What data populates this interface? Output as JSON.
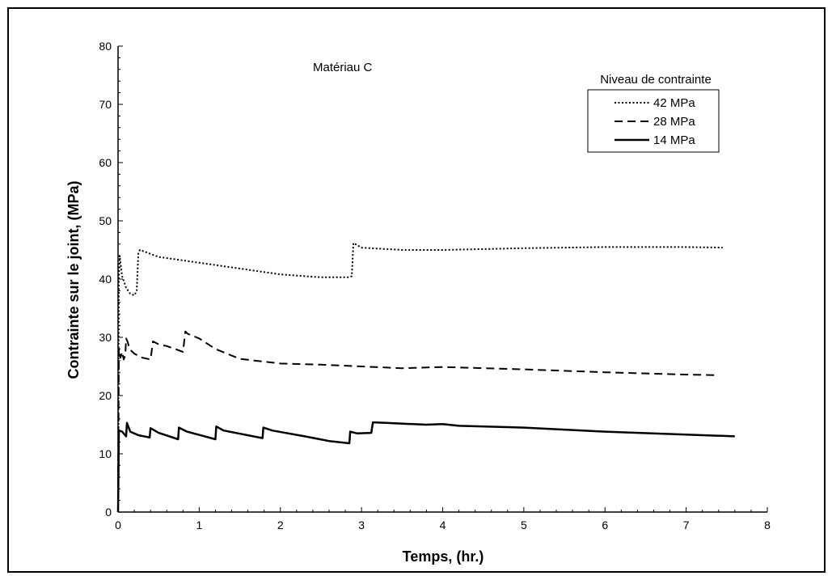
{
  "chart_data": {
    "type": "line",
    "title": "",
    "annotation": "Matériau C",
    "xlabel": "Temps, (hr.)",
    "ylabel": "Contrainte sur le joint, (MPa)",
    "xlim": [
      0,
      8
    ],
    "ylim": [
      0,
      80
    ],
    "xticks": [
      0,
      1,
      2,
      3,
      4,
      5,
      6,
      7,
      8
    ],
    "yticks": [
      0,
      10,
      20,
      30,
      40,
      50,
      60,
      70,
      80
    ],
    "grid": false,
    "legend_position": "top-right",
    "legend_title": "Niveau de contrainte",
    "series": [
      {
        "name": "42 MPa",
        "style": "dotted",
        "color": "#000000",
        "points": [
          [
            0,
            0
          ],
          [
            0.01,
            40
          ],
          [
            0.02,
            44
          ],
          [
            0.05,
            40.5
          ],
          [
            0.1,
            38.5
          ],
          [
            0.15,
            37.5
          ],
          [
            0.2,
            37.2
          ],
          [
            0.23,
            38
          ],
          [
            0.25,
            44.5
          ],
          [
            0.27,
            45
          ],
          [
            0.5,
            43.8
          ],
          [
            1.0,
            42.8
          ],
          [
            1.5,
            41.8
          ],
          [
            2.0,
            40.8
          ],
          [
            2.5,
            40.3
          ],
          [
            2.85,
            40.3
          ],
          [
            2.88,
            40.5
          ],
          [
            2.9,
            46.2
          ],
          [
            3.0,
            45.4
          ],
          [
            3.5,
            45
          ],
          [
            4.0,
            45
          ],
          [
            5.0,
            45.3
          ],
          [
            6.0,
            45.5
          ],
          [
            7.0,
            45.5
          ],
          [
            7.45,
            45.4
          ]
        ]
      },
      {
        "name": "28 MPa",
        "style": "dashed",
        "color": "#000000",
        "points": [
          [
            0,
            0
          ],
          [
            0.01,
            28
          ],
          [
            0.03,
            26.5
          ],
          [
            0.05,
            27.5
          ],
          [
            0.07,
            26.2
          ],
          [
            0.09,
            27
          ],
          [
            0.1,
            29.8
          ],
          [
            0.12,
            29.2
          ],
          [
            0.14,
            28
          ],
          [
            0.2,
            27.2
          ],
          [
            0.3,
            26.5
          ],
          [
            0.4,
            26.2
          ],
          [
            0.43,
            29.3
          ],
          [
            0.5,
            28.8
          ],
          [
            0.6,
            28.5
          ],
          [
            0.7,
            28
          ],
          [
            0.8,
            27.5
          ],
          [
            0.83,
            31
          ],
          [
            0.86,
            30.6
          ],
          [
            1.0,
            29.8
          ],
          [
            1.2,
            28
          ],
          [
            1.5,
            26.3
          ],
          [
            2.0,
            25.5
          ],
          [
            2.5,
            25.3
          ],
          [
            3.0,
            25
          ],
          [
            3.5,
            24.7
          ],
          [
            4.0,
            24.9
          ],
          [
            5.0,
            24.5
          ],
          [
            6.0,
            24
          ],
          [
            7.0,
            23.6
          ],
          [
            7.4,
            23.5
          ]
        ]
      },
      {
        "name": "14 MPa",
        "style": "solid",
        "color": "#000000",
        "points": [
          [
            0,
            0
          ],
          [
            0.01,
            14
          ],
          [
            0.05,
            13.8
          ],
          [
            0.1,
            13
          ],
          [
            0.11,
            15.3
          ],
          [
            0.15,
            13.8
          ],
          [
            0.25,
            13.2
          ],
          [
            0.39,
            12.8
          ],
          [
            0.4,
            14.4
          ],
          [
            0.5,
            13.6
          ],
          [
            0.74,
            12.5
          ],
          [
            0.75,
            14.5
          ],
          [
            0.85,
            13.8
          ],
          [
            1.2,
            12.5
          ],
          [
            1.21,
            14.7
          ],
          [
            1.3,
            14
          ],
          [
            1.78,
            12.7
          ],
          [
            1.79,
            14.5
          ],
          [
            1.9,
            14
          ],
          [
            2.3,
            13
          ],
          [
            2.6,
            12.2
          ],
          [
            2.85,
            11.8
          ],
          [
            2.86,
            13.8
          ],
          [
            2.95,
            13.5
          ],
          [
            3.12,
            13.6
          ],
          [
            3.14,
            15.4
          ],
          [
            3.3,
            15.3
          ],
          [
            3.8,
            15
          ],
          [
            4.0,
            15.1
          ],
          [
            4.2,
            14.8
          ],
          [
            5.0,
            14.5
          ],
          [
            6.0,
            13.8
          ],
          [
            7.0,
            13.3
          ],
          [
            7.6,
            13
          ]
        ]
      }
    ]
  }
}
